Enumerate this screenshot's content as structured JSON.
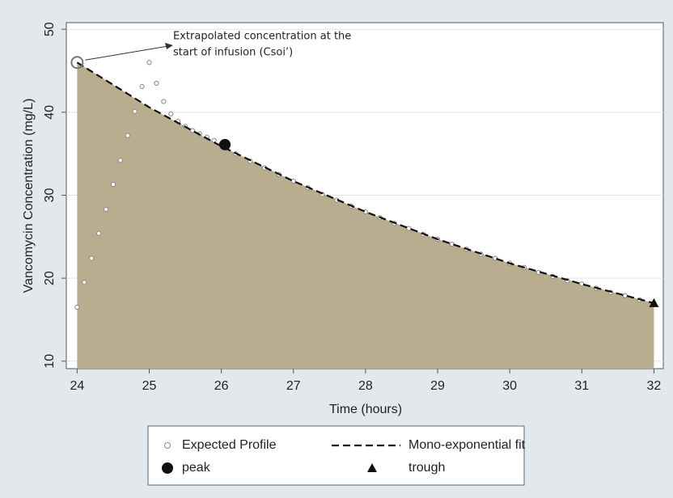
{
  "chart_data": {
    "type": "line",
    "xlabel": "Time (hours)",
    "ylabel": "Vancomycin Concentration (mg/L)",
    "xlim": [
      23.85,
      32.13
    ],
    "ylim": [
      9.1,
      50.8
    ],
    "xticks": [
      24,
      25,
      26,
      27,
      28,
      29,
      30,
      31,
      32
    ],
    "yticks": [
      10,
      20,
      30,
      40,
      50
    ],
    "grid": true,
    "area_color": "#b8ad8e",
    "legend": "bottom",
    "series": [
      {
        "name": "Expected Profile",
        "color": "#888888",
        "marker": "circle-open",
        "x": [
          24.0,
          24.1,
          24.2,
          24.3,
          24.4,
          24.5,
          24.6,
          24.7,
          24.8,
          24.9,
          25.0,
          25.1,
          25.2,
          25.3,
          25.4,
          25.5,
          25.6,
          25.7,
          25.8,
          25.9,
          26.0,
          26.2,
          26.4,
          26.6,
          26.8,
          27.0,
          27.2,
          27.4,
          27.6,
          27.8,
          28.0,
          28.2,
          28.4,
          28.6,
          28.8,
          29.0,
          29.2,
          29.4,
          29.6,
          29.8,
          30.0,
          30.2,
          30.4,
          30.6,
          30.8,
          31.0,
          31.2,
          31.4,
          31.6,
          31.8,
          32.0
        ],
        "values": [
          16.5,
          19.5,
          22.4,
          25.4,
          28.3,
          31.3,
          34.2,
          37.2,
          40.1,
          43.1,
          46.0,
          43.5,
          41.3,
          39.8,
          38.9,
          38.3,
          37.8,
          37.4,
          37.0,
          36.6,
          36.2,
          35.0,
          34.1,
          33.3,
          32.5,
          31.7,
          30.9,
          30.1,
          29.4,
          28.7,
          28.0,
          27.3,
          26.6,
          26.0,
          25.3,
          24.7,
          24.1,
          23.5,
          22.9,
          22.4,
          21.8,
          21.3,
          20.7,
          20.2,
          19.7,
          19.3,
          18.8,
          18.3,
          17.9,
          17.4,
          17.0
        ]
      },
      {
        "name": "Mono-exponential fit",
        "color": "#111111",
        "marker": "dashed",
        "x": [
          24,
          25,
          26,
          27,
          28,
          29,
          30,
          31,
          32
        ],
        "values": [
          46.0,
          40.6,
          35.9,
          31.7,
          28.0,
          24.7,
          21.8,
          19.3,
          17.0
        ]
      },
      {
        "name": "peak",
        "color": "#111111",
        "marker": "circle",
        "x": [
          26.05
        ],
        "values": [
          36.1
        ]
      },
      {
        "name": "trough",
        "color": "#111111",
        "marker": "triangle",
        "x": [
          32
        ],
        "values": [
          17.0
        ]
      }
    ],
    "annotation": {
      "text": [
        "Extrapolated concentration at the",
        "start of infusion (Csoi’)"
      ],
      "x": 24,
      "y": 46
    }
  }
}
